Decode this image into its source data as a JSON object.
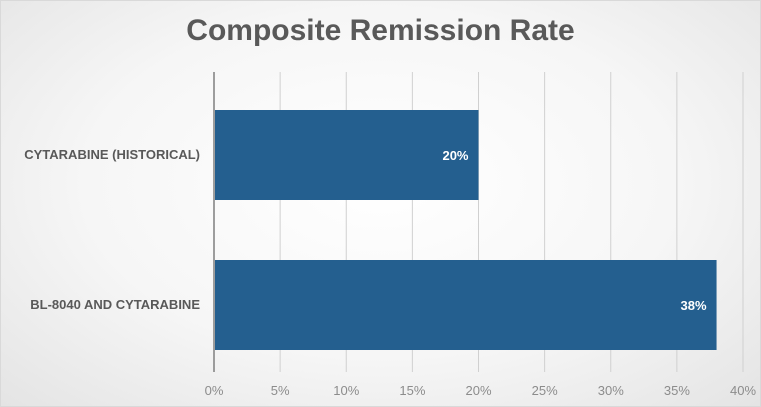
{
  "chart_data": {
    "type": "bar",
    "orientation": "horizontal",
    "title": "Composite Remission Rate",
    "categories": [
      "CYTARABINE (HISTORICAL)",
      "BL-8040 AND CYTARABINE"
    ],
    "values": [
      20,
      38
    ],
    "data_labels": [
      "20%",
      "38%"
    ],
    "xlim": [
      0,
      40
    ],
    "x_ticks": [
      "0%",
      "5%",
      "10%",
      "15%",
      "20%",
      "25%",
      "30%",
      "35%",
      "40%"
    ],
    "grid": true,
    "legend": "none",
    "bar_color": "#245f8f"
  }
}
